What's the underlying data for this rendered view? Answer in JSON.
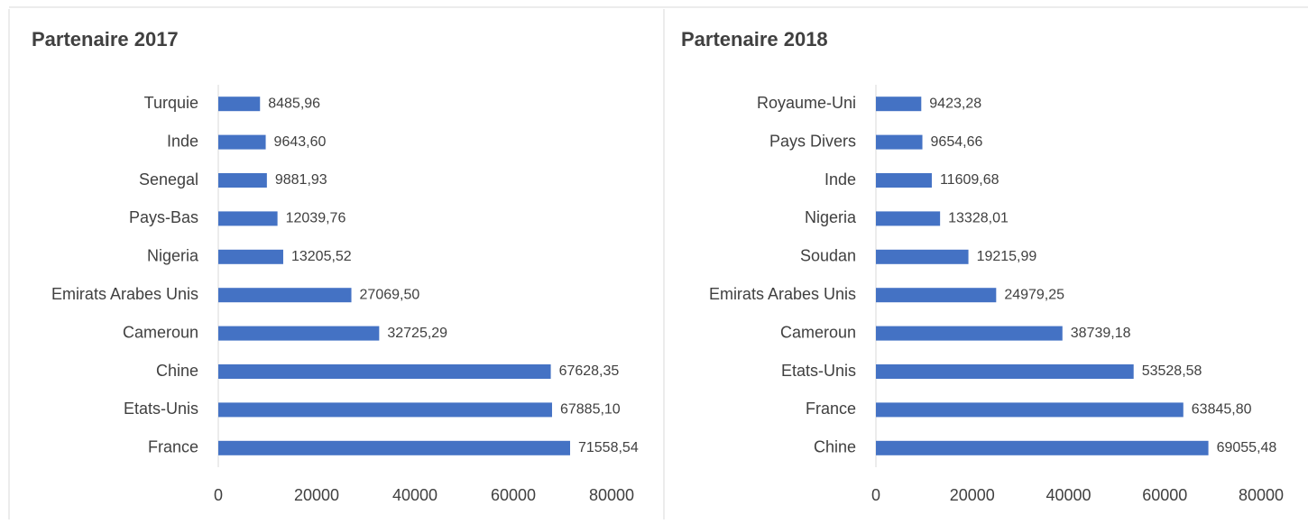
{
  "chart_data": [
    {
      "type": "bar",
      "orientation": "horizontal",
      "title": "Partenaire 2017",
      "categories": [
        "Turquie",
        "Inde",
        "Senegal",
        "Pays-Bas",
        "Nigeria",
        "Emirats Arabes Unis",
        "Cameroun",
        "Chine",
        "Etats-Unis",
        "France"
      ],
      "values": [
        8485.96,
        9643.6,
        9881.93,
        12039.76,
        13205.52,
        27069.5,
        32725.29,
        67628.35,
        67885.1,
        71558.54
      ],
      "value_labels": [
        "8485,96",
        "9643,60",
        "9881,93",
        "12039,76",
        "13205,52",
        "27069,50",
        "32725,29",
        "67628,35",
        "67885,10",
        "71558,54"
      ],
      "color": "#4472c4",
      "xlim": [
        0,
        80000
      ],
      "xticks": [
        0,
        20000,
        40000,
        60000,
        80000
      ],
      "grid": false
    },
    {
      "type": "bar",
      "orientation": "horizontal",
      "title": "Partenaire 2018",
      "categories": [
        "Royaume-Uni",
        "Pays Divers",
        "Inde",
        "Nigeria",
        "Soudan",
        "Emirats Arabes Unis",
        "Cameroun",
        "Etats-Unis",
        "France",
        "Chine"
      ],
      "values": [
        9423.28,
        9654.66,
        11609.68,
        13328.01,
        19215.99,
        24979.25,
        38739.18,
        53528.58,
        63845.8,
        69055.48
      ],
      "value_labels": [
        "9423,28",
        "9654,66",
        "11609,68",
        "13328,01",
        "19215,99",
        "24979,25",
        "38739,18",
        "53528,58",
        "63845,80",
        "69055,48"
      ],
      "color": "#4472c4",
      "xlim": [
        0,
        80000
      ],
      "xticks": [
        0,
        20000,
        40000,
        60000,
        80000
      ],
      "grid": false
    }
  ]
}
